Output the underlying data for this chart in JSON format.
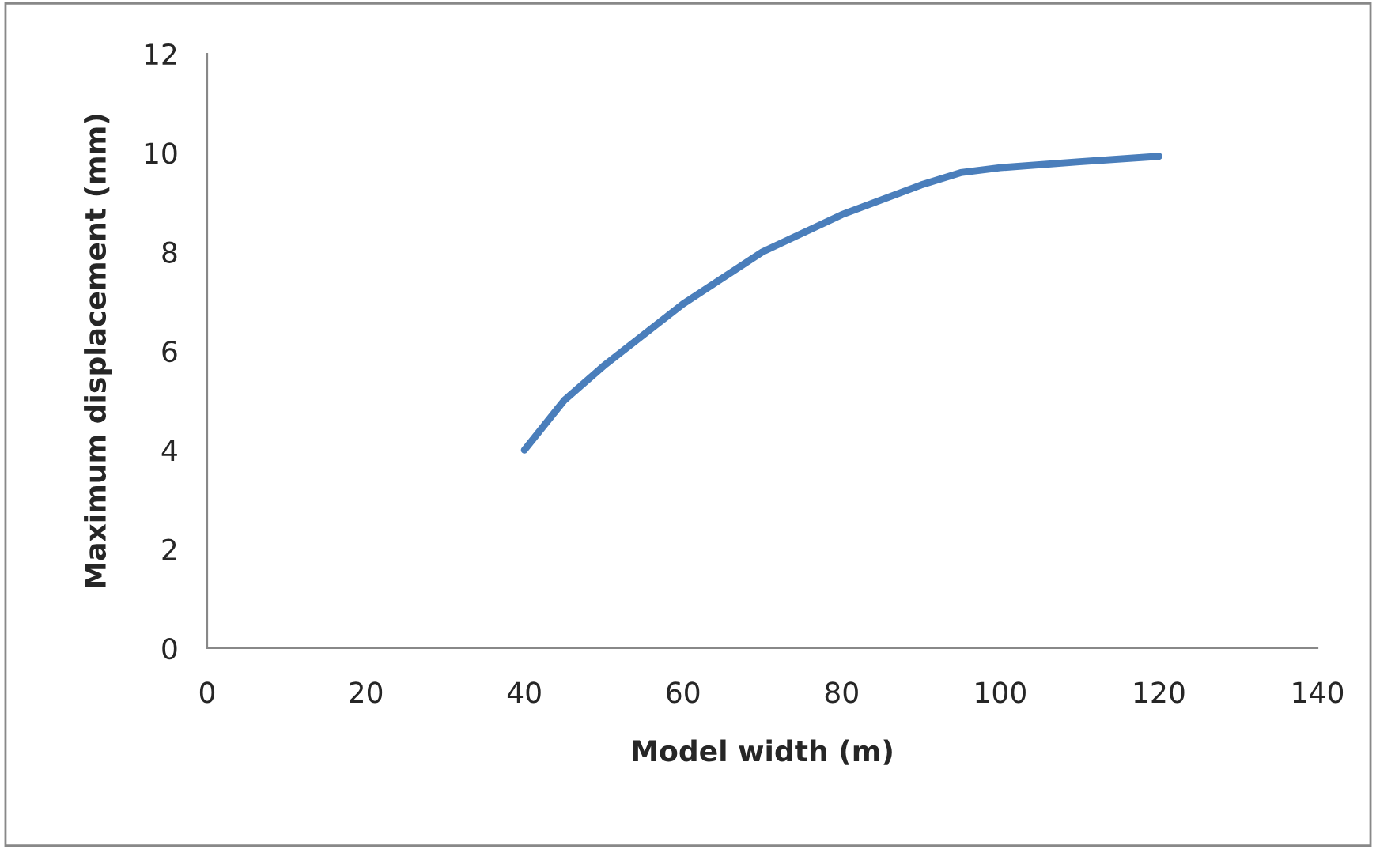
{
  "chart_data": {
    "type": "line",
    "xlabel": "Model width (m)",
    "ylabel": "Maximum displacement (mm)",
    "x": [
      40,
      45,
      50,
      60,
      70,
      80,
      90,
      95,
      100,
      110,
      120
    ],
    "series": [
      {
        "color": "#4a7ebb",
        "values": [
          4.0,
          5.0,
          5.7,
          6.95,
          8.0,
          8.75,
          9.35,
          9.6,
          9.7,
          9.82,
          9.93
        ]
      }
    ],
    "xlim": [
      0,
      140
    ],
    "xticks": [
      0,
      20,
      40,
      60,
      80,
      100,
      120,
      140
    ],
    "ylim": [
      0,
      12
    ],
    "yticks": [
      0,
      2,
      4,
      6,
      8,
      10,
      12
    ],
    "grid": false,
    "marker": "none",
    "line_style": "solid"
  }
}
